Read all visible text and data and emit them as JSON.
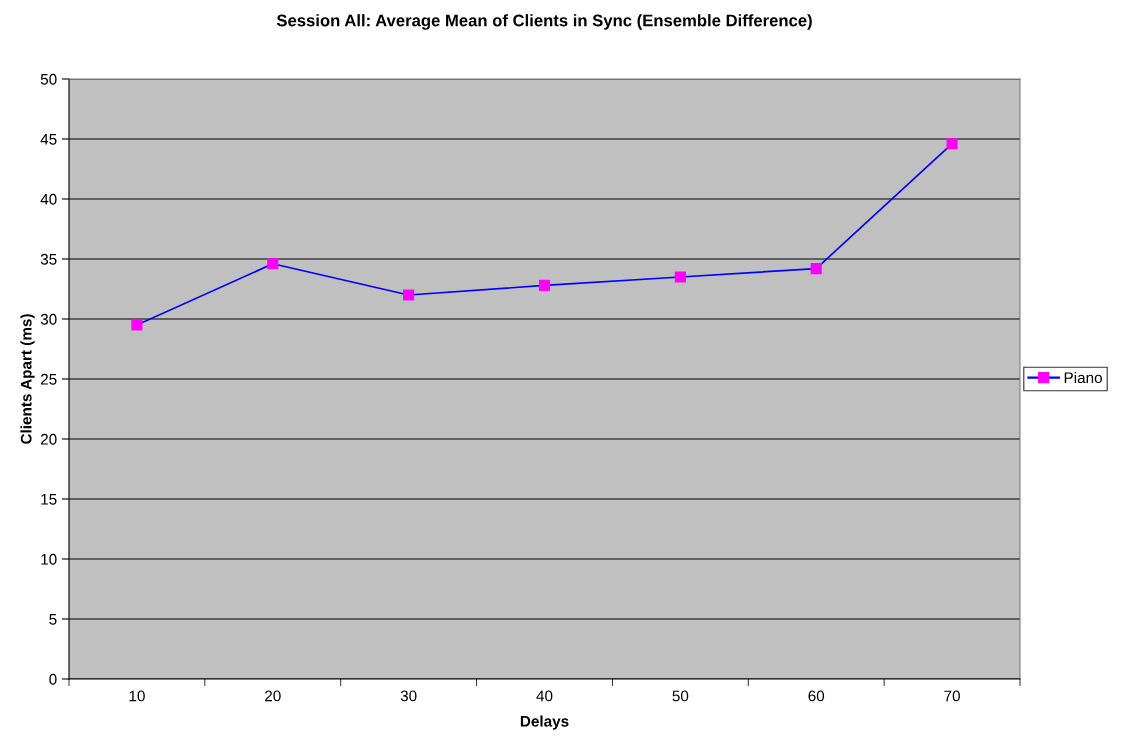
{
  "chart_data": {
    "type": "line",
    "title": "Session All: Average Mean of Clients in Sync (Ensemble Difference)",
    "xlabel": "Delays",
    "ylabel": "Clients Apart (ms)",
    "categories": [
      "10",
      "20",
      "30",
      "40",
      "50",
      "60",
      "70"
    ],
    "series": [
      {
        "name": "Piano",
        "color": "#0000ff",
        "values": [
          29.5,
          34.6,
          32.0,
          32.8,
          33.5,
          34.2,
          44.6
        ]
      }
    ],
    "ylim": [
      0,
      50
    ],
    "yticks": [
      0,
      5,
      10,
      15,
      20,
      25,
      30,
      35,
      40,
      45,
      50
    ],
    "grid": "y",
    "legend": "right",
    "marker": "square",
    "line_style": "solid"
  }
}
